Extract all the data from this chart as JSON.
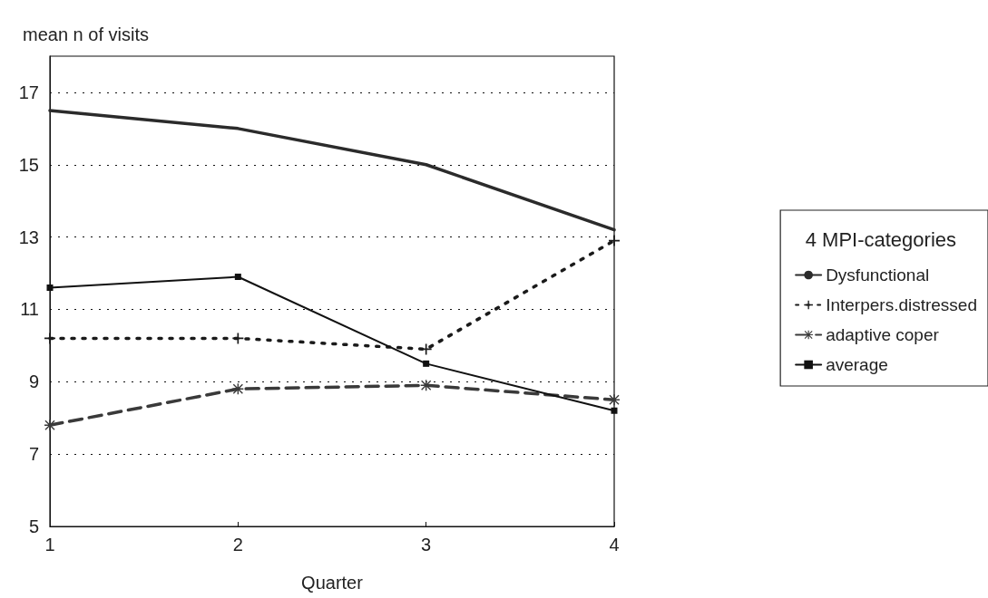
{
  "chart_data": {
    "type": "line",
    "xlabel": "Quarter",
    "ylabel": "mean n of visits",
    "legend_title": "4 MPI-categories",
    "x": [
      1,
      2,
      3,
      4
    ],
    "xlim": [
      1,
      4
    ],
    "xticks": [
      1,
      2,
      3,
      4
    ],
    "ylim": [
      5,
      18
    ],
    "yticks": [
      5,
      7,
      9,
      11,
      13,
      15,
      17
    ],
    "grid": "y",
    "legend": "right",
    "series": [
      {
        "name": "Dysfunctional",
        "color": "#2b2b2b",
        "values": [
          16.5,
          16.0,
          15.0,
          13.2
        ],
        "marker": "none",
        "line_style": "solid"
      },
      {
        "name": "Interpers.distressed",
        "color": "#1a1a1a",
        "values": [
          10.2,
          10.2,
          9.9,
          12.9
        ],
        "marker": "cross",
        "line_style": "dotted"
      },
      {
        "name": "adaptive coper",
        "color": "#3a3a3a",
        "values": [
          7.8,
          8.8,
          8.9,
          8.5
        ],
        "marker": "star",
        "line_style": "dashed"
      },
      {
        "name": "average",
        "color": "#111111",
        "values": [
          11.6,
          11.9,
          9.5,
          8.2
        ],
        "marker": "square",
        "line_style": "solid"
      }
    ]
  }
}
